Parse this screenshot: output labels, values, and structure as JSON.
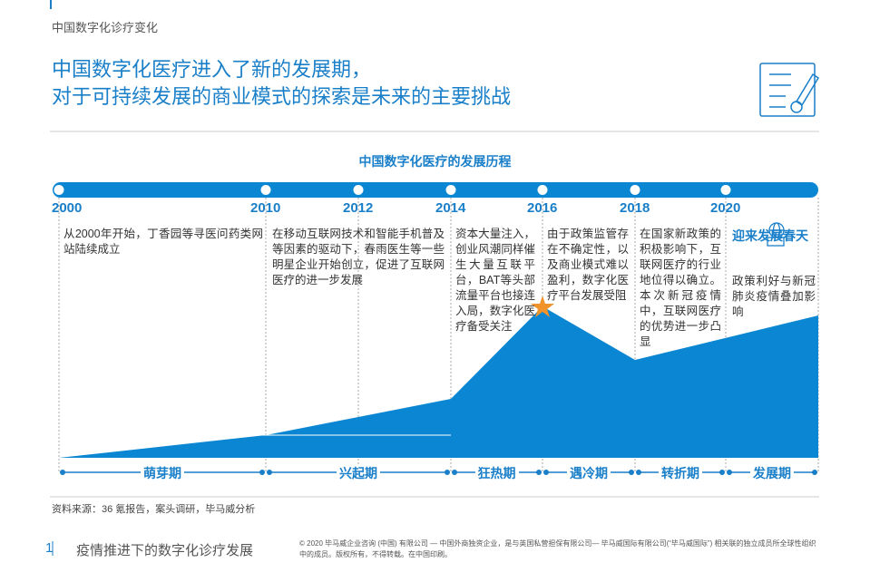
{
  "header": {
    "section": "中国数字化诊疗变化"
  },
  "title": {
    "lines": [
      "中国数字化医疗进入了新的发展期，",
      "对于可持续发展的商业模式的探索是未来的主要挑战"
    ]
  },
  "timeline": {
    "title": "中国数字化医疗的发展历程",
    "years": [
      "2000",
      "2010",
      "2012",
      "2014",
      "2016",
      "2018",
      "2020"
    ],
    "descriptions": [
      "从2000年开始，丁香园等寻医问药类网站陆续成立",
      "在移动互联网技术和智能手机普及等因素的驱动下，春雨医生等一些明星企业开始创立，促进了互联网医疗的进一步发展",
      "资本大量注入，创业风潮同样催生大量互联平台，BAT等头部流量平台也接连入局，数字化医疗备受关注",
      "由于政策监管存在不确定性，以及商业模式难以盈利，数字化医疗平台发展受阻",
      "在国家新政策的积极影响下，互联网医疗的行业地位得以确立。本次新冠疫情中，互联网医疗的优势进一步凸显",
      "政策利好与新冠肺炎疫情叠加影响"
    ],
    "highlight": "迎来发展春天",
    "phases": [
      "萌芽期",
      "兴起期",
      "狂热期",
      "遇冷期",
      "转折期",
      "发展期"
    ]
  },
  "source": "资料来源：36 氪报告，案头调研，毕马威分析",
  "footer": {
    "page": "1",
    "title": "疫情推进下的数字化诊疗发展",
    "copyright": "© 2020 毕马威企业咨询 (中国) 有限公司 — 中国外商独资企业，是与英国私营担保有限公司— 毕马威国际有限公司(“毕马威国际”) 相关联的独立成员所全球性组织中的成员。版权所有，不得转载。在中国印刷。"
  }
}
